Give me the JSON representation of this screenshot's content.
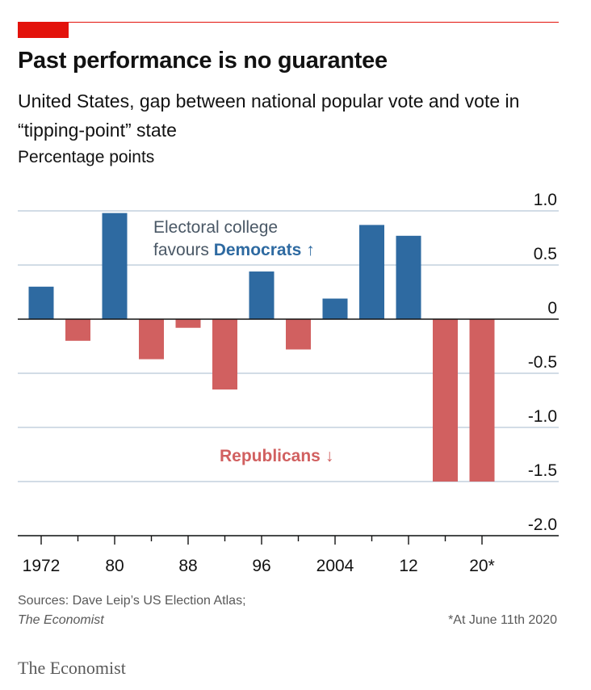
{
  "title": "Past performance is no guarantee",
  "subtitle": "United States, gap between national popular vote and vote in “tipping-point” state",
  "unit": "Percentage points",
  "sources_line1": "Sources: Dave Leip’s US Election Atlas;",
  "sources_line2": "The Economist",
  "footnote": "*At June 11th 2020",
  "brand": "The Economist",
  "colors": {
    "accent": "#e3120b",
    "democrats": "#2e6aa1",
    "republicans": "#d16060",
    "grid": "#b7c8d6"
  },
  "chart_data": {
    "type": "bar",
    "categories": [
      "1972",
      "1976",
      "1980",
      "1984",
      "1988",
      "1992",
      "1996",
      "2000",
      "2004",
      "2008",
      "2012",
      "2016",
      "2020*"
    ],
    "values": [
      0.3,
      -0.2,
      0.98,
      -0.37,
      -0.08,
      -0.65,
      0.44,
      -0.28,
      0.19,
      0.87,
      0.77,
      -1.5,
      -1.5
    ],
    "tick_labels": [
      "1972",
      "80",
      "88",
      "96",
      "2004",
      "12",
      "20*"
    ],
    "y_ticks": [
      1.0,
      0.5,
      0,
      -0.5,
      -1.0,
      -1.5,
      -2.0
    ],
    "y_tick_labels": [
      "1.0",
      "0.5",
      "0",
      "-0.5",
      "-1.0",
      "-1.5",
      "-2.0"
    ],
    "ylim": [
      -2.0,
      1.0
    ],
    "y_axis_side": "right",
    "grid": true,
    "annotations": {
      "dem_line1": "Electoral college",
      "dem_line2_prefix": "favours ",
      "dem_word": "Democrats",
      "dem_arrow": "↑",
      "rep_word": "Republicans",
      "rep_arrow": "↓"
    }
  }
}
